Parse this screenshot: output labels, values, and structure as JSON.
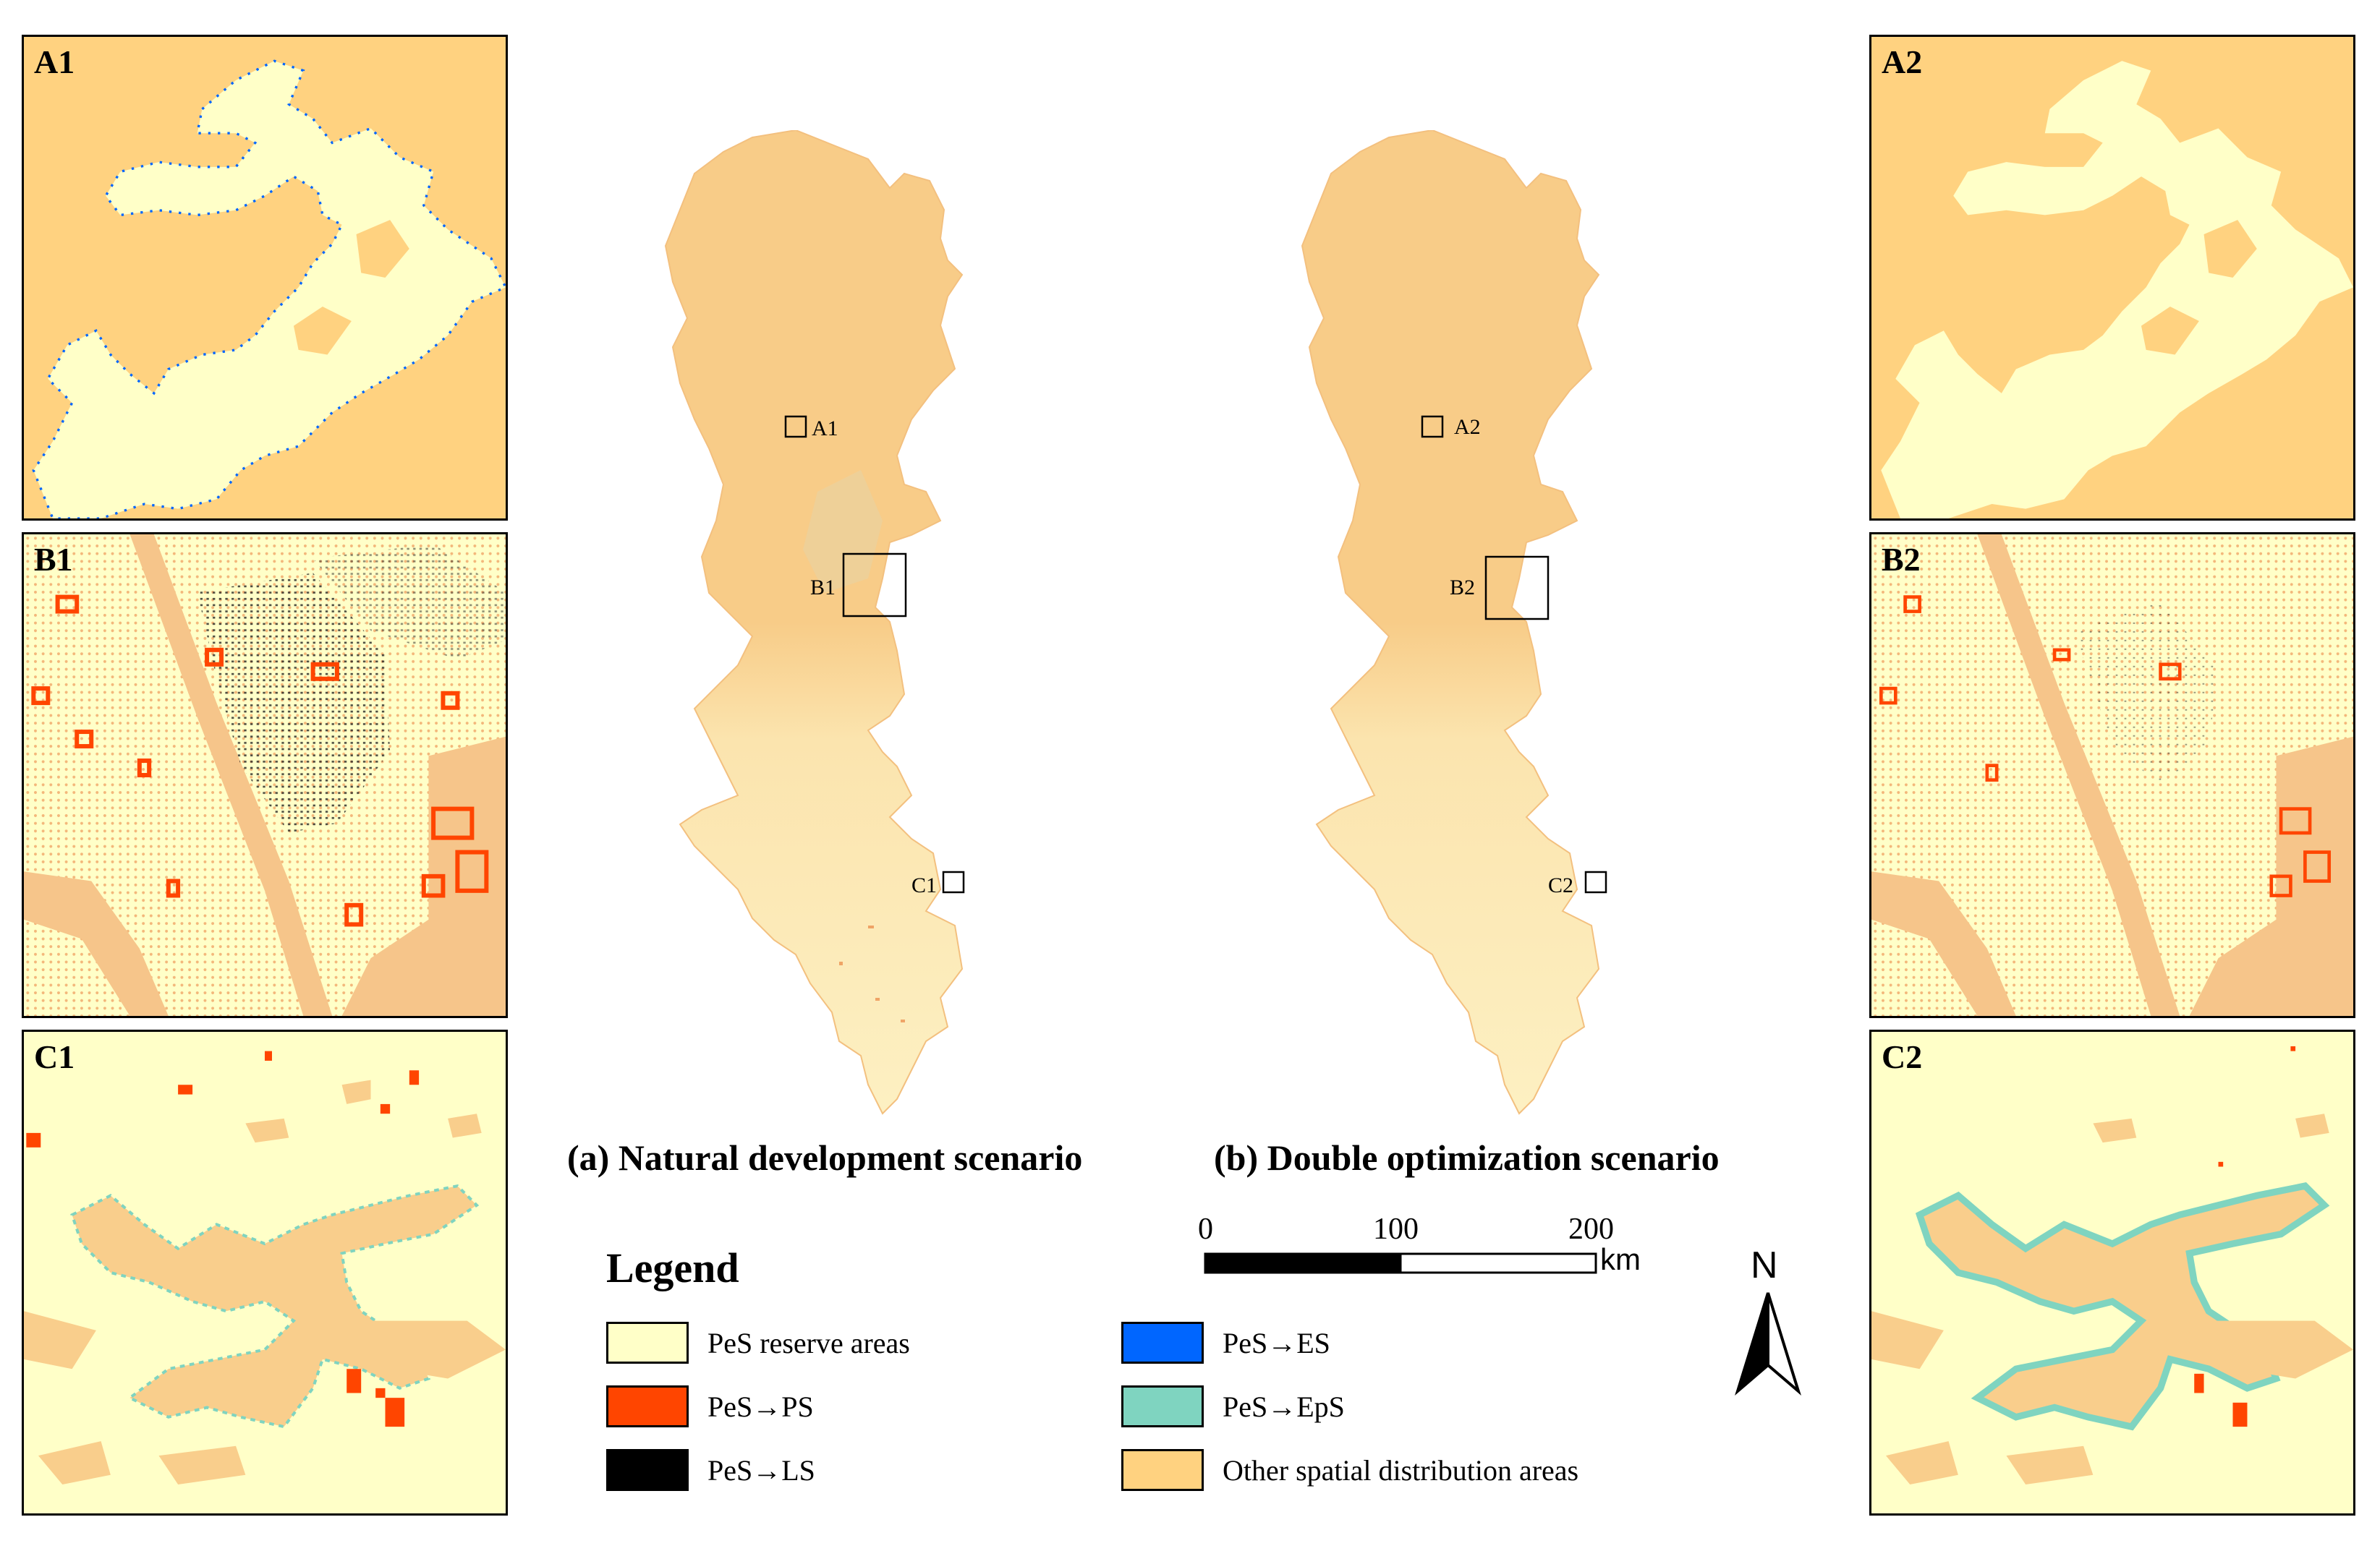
{
  "colors": {
    "pes_reserve": "#FFFFC8",
    "pes_ps": "#FF4500",
    "pes_ls": "#000000",
    "pes_es": "#0066FF",
    "pes_eps": "#7FD4C0",
    "other": "#FFD280",
    "map_fill": "#F9CE8C"
  },
  "panels": {
    "a1": "A1",
    "b1": "B1",
    "c1": "C1",
    "a2": "A2",
    "b2": "B2",
    "c2": "C2"
  },
  "maps": {
    "left": {
      "box_a": "A1",
      "box_b": "B1",
      "box_c": "C1"
    },
    "right": {
      "box_a": "A2",
      "box_b": "B2",
      "box_c": "C2"
    }
  },
  "captions": {
    "left": "(a) Natural development scenario",
    "right": "(b) Double optimization scenario"
  },
  "legend": {
    "title": "Legend",
    "items": [
      {
        "label": "PeS reserve areas",
        "color": "#FFFFC8"
      },
      {
        "label": "PeS→PS",
        "color": "#FF4500"
      },
      {
        "label": "PeS→LS",
        "color": "#000000"
      },
      {
        "label": "PeS→ES",
        "color": "#0066FF"
      },
      {
        "label": "PeS→EpS",
        "color": "#7FD4C0"
      },
      {
        "label": "Other spatial distribution areas",
        "color": "#FFD280"
      }
    ]
  },
  "scale": {
    "t0": "0",
    "t1": "100",
    "t2": "200",
    "unit": "km"
  },
  "north": "N"
}
